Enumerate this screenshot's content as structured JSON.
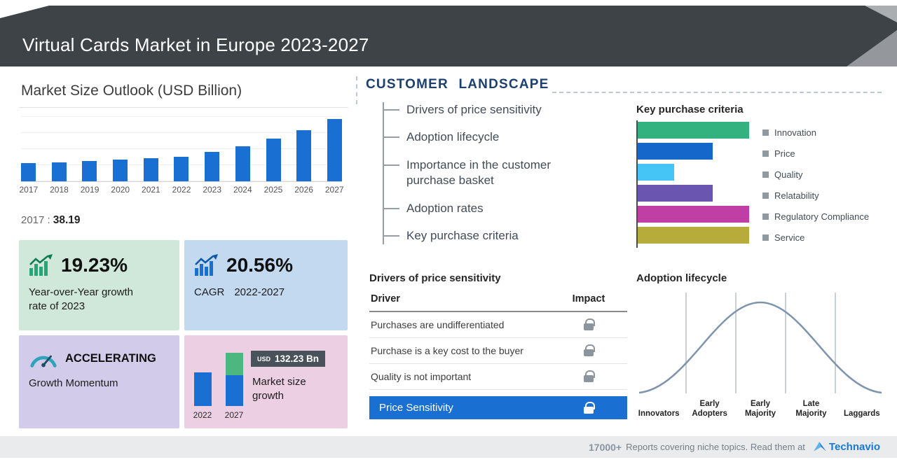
{
  "header": {
    "title": "Virtual Cards Market in Europe 2023-2027"
  },
  "market_outlook": {
    "title": "Market Size Outlook (USD Billion)",
    "base_label": "2017 :",
    "base_value": "38.19"
  },
  "cards": {
    "yoy": {
      "value": "19.23%",
      "label": "Year-over-Year growth rate of 2023"
    },
    "cagr": {
      "value": "20.56%",
      "label": "CAGR",
      "range": "2022-2027"
    },
    "momentum": {
      "title": "ACCELERATING",
      "label": "Growth Momentum"
    },
    "growth": {
      "badge_currency": "USD",
      "badge_value": "132.23 Bn",
      "label": "Market size growth",
      "year_start": "2022",
      "year_end": "2027"
    }
  },
  "customer_landscape": {
    "title": "CUSTOMER LANDSCAPE",
    "items": [
      "Drivers of price sensitivity",
      "Adoption lifecycle",
      "Importance in the customer purchase basket",
      "Adoption rates",
      "Key purchase criteria"
    ]
  },
  "key_purchase_criteria": {
    "title": "Key purchase criteria"
  },
  "drivers": {
    "title": "Drivers of price sensitivity",
    "col_driver": "Driver",
    "col_impact": "Impact",
    "rows": [
      "Purchases are undifferentiated",
      "Purchase is a key cost to the buyer",
      "Quality is not important"
    ],
    "highlight": "Price Sensitivity"
  },
  "adoption": {
    "title": "Adoption lifecycle",
    "stages": [
      "Innovators",
      "Early Adopters",
      "Early Majority",
      "Late Majority",
      "Laggards"
    ]
  },
  "footer": {
    "count": "17000+",
    "text": "Reports covering niche topics. Read them at",
    "brand": "Technavio"
  },
  "colors": {
    "primary_blue": "#1a70d2",
    "header_bg": "#3e4347",
    "legend_square": "#8f99a2",
    "highlight_row": "#1a70d2"
  },
  "chart_data": [
    {
      "type": "bar",
      "title": "Market Size Outlook (USD Billion)",
      "categories": [
        "2017",
        "2018",
        "2019",
        "2020",
        "2021",
        "2022",
        "2023",
        "2024",
        "2025",
        "2026",
        "2027"
      ],
      "values": [
        38.19,
        40.6,
        43.2,
        45.9,
        48.8,
        51.9,
        61.9,
        74.9,
        90.5,
        109.4,
        132.23
      ],
      "ylim": [
        0,
        140
      ],
      "bar_color": "#1a70d2",
      "grid": true,
      "annotation": "2017 : 38.19"
    },
    {
      "type": "bar",
      "orientation": "horizontal",
      "title": "Key purchase criteria",
      "categories": [
        "Innovation",
        "Price",
        "Quality",
        "Relatability",
        "Regulatory Compliance",
        "Service"
      ],
      "values": [
        100,
        67,
        33,
        67,
        100,
        100
      ],
      "colors": [
        "#33b27f",
        "#1567c9",
        "#45c5f5",
        "#6a55b0",
        "#bf3fa4",
        "#b7ab3c"
      ],
      "legend_position": "right"
    },
    {
      "type": "bar",
      "title": "Market size growth",
      "categories": [
        "2022",
        "2027"
      ],
      "values": [
        51.93,
        132.23
      ],
      "badge": "USD 132.23 Bn"
    },
    {
      "type": "area",
      "title": "Adoption lifecycle",
      "categories": [
        "Innovators",
        "Early Adopters",
        "Early Majority",
        "Late Majority",
        "Laggards"
      ],
      "shape": "bell-curve"
    }
  ]
}
